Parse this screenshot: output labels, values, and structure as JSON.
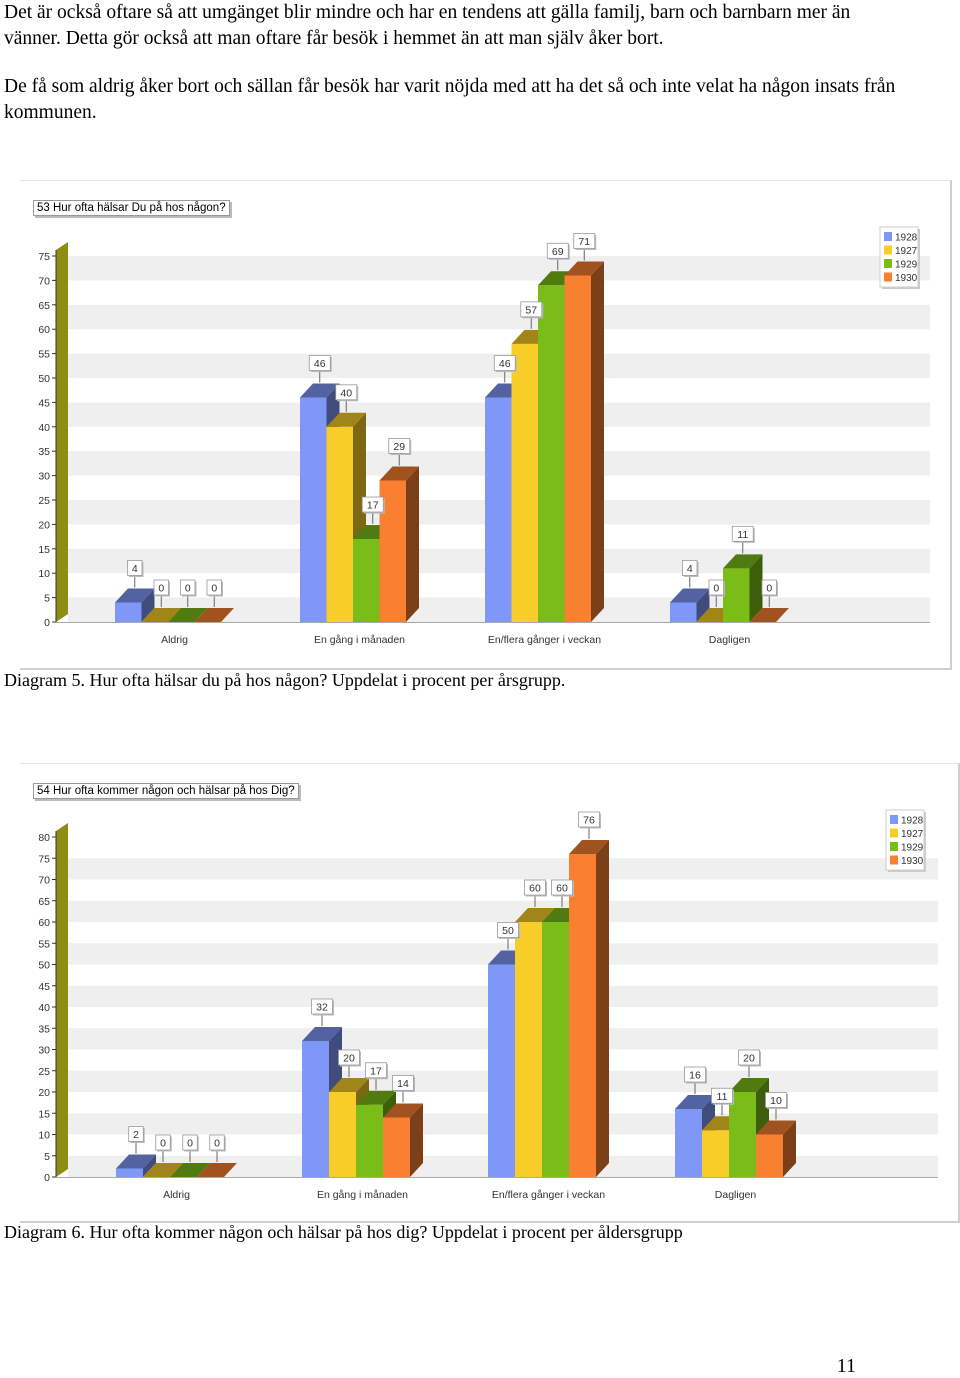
{
  "text": {
    "paragraph1": "Det är också oftare så att umgänget blir mindre och har en tendens att gälla familj, barn och barnbarn mer än vänner. Detta gör också att man oftare får besök i hemmet än att man själv åker bort.",
    "paragraph2": "De få som aldrig åker bort och sällan får besök har varit nöjda med att ha det så och inte velat ha någon insats från kommunen.",
    "caption1": "Diagram 5. Hur ofta hälsar du på hos någon? Uppdelat i procent per årsgrupp.",
    "caption2": "Diagram 6. Hur ofta kommer någon och hälsar på hos dig? Uppdelat i procent per åldersgrupp",
    "page_number": "11"
  },
  "colors": {
    "1928": "#7f98f8",
    "1927": "#f8cd27",
    "1929": "#7abd18",
    "1930": "#f88030",
    "axis_wall": "#8d8d13",
    "band": "#efefef"
  },
  "chart_data": [
    {
      "type": "bar",
      "title": "53 Hur ofta hälsar Du på hos någon?",
      "categories": [
        "Aldrig",
        "En gång i månaden",
        "En/flera gånger i veckan",
        "Dagligen"
      ],
      "series": [
        {
          "name": "1928",
          "values": [
            4,
            46,
            46,
            4
          ]
        },
        {
          "name": "1927",
          "values": [
            0,
            40,
            57,
            0
          ]
        },
        {
          "name": "1929",
          "values": [
            0,
            17,
            69,
            11
          ]
        },
        {
          "name": "1930",
          "values": [
            0,
            29,
            71,
            0
          ]
        }
      ],
      "yticks": [
        0,
        5,
        10,
        15,
        20,
        25,
        30,
        35,
        40,
        45,
        50,
        55,
        60,
        65,
        70,
        75
      ],
      "ylim": [
        0,
        75
      ],
      "legend": "top-right",
      "grid": true
    },
    {
      "type": "bar",
      "title": "54 Hur ofta kommer någon och hälsar på hos Dig?",
      "categories": [
        "Aldrig",
        "En gång i månaden",
        "En/flera gånger i veckan",
        "Dagligen"
      ],
      "series": [
        {
          "name": "1928",
          "values": [
            2,
            32,
            50,
            16
          ]
        },
        {
          "name": "1927",
          "values": [
            0,
            20,
            60,
            11
          ]
        },
        {
          "name": "1929",
          "values": [
            0,
            17,
            60,
            20
          ]
        },
        {
          "name": "1930",
          "values": [
            0,
            14,
            76,
            10
          ]
        }
      ],
      "yticks": [
        0,
        5,
        10,
        15,
        20,
        25,
        30,
        35,
        40,
        45,
        50,
        55,
        60,
        65,
        70,
        75,
        80
      ],
      "ylim": [
        0,
        80
      ],
      "legend": "top-right",
      "grid": true
    }
  ]
}
